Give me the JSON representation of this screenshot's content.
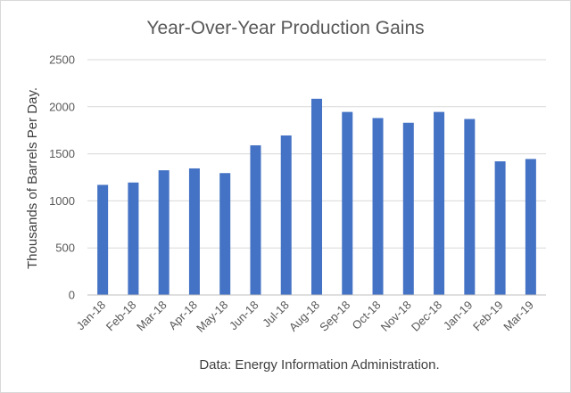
{
  "chart_data": {
    "type": "bar",
    "title": "Year-Over-Year Production Gains",
    "ylabel": "Thousands of Barrels Per Day.",
    "xlabel": "Data: Energy Information Administration.",
    "categories": [
      "Jan-18",
      "Feb-18",
      "Mar-18",
      "Apr-18",
      "May-18",
      "Jun-18",
      "Jul-18",
      "Aug-18",
      "Sep-18",
      "Oct-18",
      "Nov-18",
      "Dec-18",
      "Jan-19",
      "Feb-19",
      "Mar-19"
    ],
    "values": [
      1170,
      1195,
      1325,
      1345,
      1295,
      1590,
      1695,
      2085,
      1945,
      1880,
      1830,
      1945,
      1870,
      1420,
      1445
    ],
    "ylim": [
      0,
      2500
    ],
    "yticks": [
      "0",
      "500",
      "1000",
      "1500",
      "2000",
      "2500"
    ],
    "grid": true,
    "legend": "none",
    "bar_color": "#4472C4"
  }
}
